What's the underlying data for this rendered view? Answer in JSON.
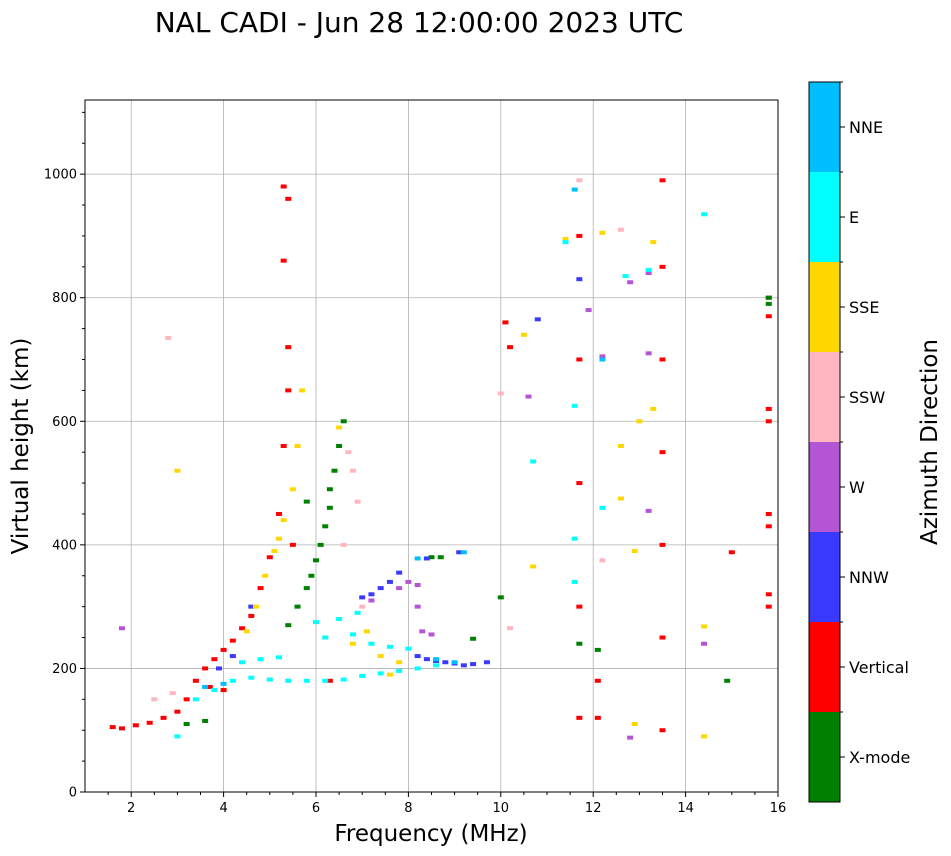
{
  "chart_data": {
    "type": "scatter",
    "title": "NAL CADI - Jun 28 12:00:00 2023 UTC",
    "xlabel": "Frequency (MHz)",
    "ylabel": "Virtual height (km)",
    "xlim": [
      1,
      16
    ],
    "ylim": [
      0,
      1120
    ],
    "xticks": [
      2,
      4,
      6,
      8,
      10,
      12,
      14,
      16
    ],
    "yticks": [
      0,
      200,
      400,
      600,
      800,
      1000
    ],
    "grid": true,
    "colorbar": {
      "label": "Azimuth Direction",
      "categories": [
        {
          "name": "X-mode",
          "color": "#008000"
        },
        {
          "name": "Vertical",
          "color": "#ff0000"
        },
        {
          "name": "NNW",
          "color": "#3a3aff"
        },
        {
          "name": "W",
          "color": "#b455d6"
        },
        {
          "name": "SSW",
          "color": "#ffb6c1"
        },
        {
          "name": "SSE",
          "color": "#ffd700"
        },
        {
          "name": "E",
          "color": "#00ffff"
        },
        {
          "name": "NNE",
          "color": "#00bfff"
        }
      ]
    },
    "series": [
      {
        "name": "Vertical",
        "color": "#ff0000",
        "points": [
          [
            1.6,
            105
          ],
          [
            1.8,
            103
          ],
          [
            2.1,
            108
          ],
          [
            2.4,
            112
          ],
          [
            2.7,
            120
          ],
          [
            3.0,
            130
          ],
          [
            3.2,
            150
          ],
          [
            3.4,
            180
          ],
          [
            3.6,
            200
          ],
          [
            3.8,
            215
          ],
          [
            4.0,
            230
          ],
          [
            4.2,
            245
          ],
          [
            4.4,
            265
          ],
          [
            4.6,
            285
          ],
          [
            4.8,
            330
          ],
          [
            5.0,
            380
          ],
          [
            5.2,
            450
          ],
          [
            5.3,
            560
          ],
          [
            5.4,
            650
          ],
          [
            5.4,
            720
          ],
          [
            5.3,
            860
          ],
          [
            5.4,
            960
          ],
          [
            5.3,
            980
          ],
          [
            3.7,
            170
          ],
          [
            4.0,
            165
          ],
          [
            11.7,
            120
          ],
          [
            11.7,
            300
          ],
          [
            11.7,
            500
          ],
          [
            11.7,
            700
          ],
          [
            11.7,
            900
          ],
          [
            13.5,
            100
          ],
          [
            13.5,
            250
          ],
          [
            13.5,
            400
          ],
          [
            13.5,
            550
          ],
          [
            13.5,
            700
          ],
          [
            13.5,
            850
          ],
          [
            13.5,
            990
          ],
          [
            15.8,
            300
          ],
          [
            15.8,
            320
          ],
          [
            15.8,
            430
          ],
          [
            15.8,
            450
          ],
          [
            15.8,
            600
          ],
          [
            15.8,
            620
          ],
          [
            15.8,
            770
          ],
          [
            15.8,
            800
          ],
          [
            15.0,
            388
          ],
          [
            12.1,
            120
          ],
          [
            12.1,
            180
          ],
          [
            10.1,
            760
          ],
          [
            10.2,
            720
          ],
          [
            6.3,
            180
          ],
          [
            5.5,
            400
          ]
        ]
      },
      {
        "name": "X-mode",
        "color": "#008000",
        "points": [
          [
            5.8,
            330
          ],
          [
            5.9,
            350
          ],
          [
            6.0,
            375
          ],
          [
            6.1,
            400
          ],
          [
            6.2,
            430
          ],
          [
            6.3,
            460
          ],
          [
            6.3,
            490
          ],
          [
            6.4,
            520
          ],
          [
            6.5,
            560
          ],
          [
            6.6,
            600
          ],
          [
            5.6,
            300
          ],
          [
            5.4,
            270
          ],
          [
            8.5,
            380
          ],
          [
            8.7,
            380
          ],
          [
            9.4,
            248
          ],
          [
            10.0,
            315
          ],
          [
            11.7,
            240
          ],
          [
            12.1,
            230
          ],
          [
            14.9,
            180
          ],
          [
            15.8,
            790
          ],
          [
            15.8,
            800
          ],
          [
            3.6,
            115
          ],
          [
            3.2,
            110
          ],
          [
            5.8,
            470
          ]
        ]
      },
      {
        "name": "NNW",
        "color": "#3a3aff",
        "points": [
          [
            7.0,
            315
          ],
          [
            7.2,
            320
          ],
          [
            7.4,
            330
          ],
          [
            7.6,
            340
          ],
          [
            7.8,
            355
          ],
          [
            8.2,
            220
          ],
          [
            8.4,
            215
          ],
          [
            8.6,
            212
          ],
          [
            8.8,
            210
          ],
          [
            9.0,
            208
          ],
          [
            9.2,
            205
          ],
          [
            9.4,
            207
          ],
          [
            9.7,
            210
          ],
          [
            8.4,
            378
          ],
          [
            9.1,
            388
          ],
          [
            10.8,
            765
          ],
          [
            11.7,
            830
          ],
          [
            3.9,
            200
          ],
          [
            4.2,
            220
          ],
          [
            4.6,
            300
          ]
        ]
      },
      {
        "name": "W",
        "color": "#b455d6",
        "points": [
          [
            7.8,
            330
          ],
          [
            8.0,
            340
          ],
          [
            8.2,
            335
          ],
          [
            8.2,
            300
          ],
          [
            8.3,
            260
          ],
          [
            8.5,
            255
          ],
          [
            12.2,
            705
          ],
          [
            12.8,
            825
          ],
          [
            13.2,
            710
          ],
          [
            13.2,
            840
          ],
          [
            13.2,
            455
          ],
          [
            10.6,
            640
          ],
          [
            12.8,
            88
          ],
          [
            14.4,
            240
          ],
          [
            1.8,
            265
          ],
          [
            7.2,
            310
          ],
          [
            11.9,
            780
          ]
        ]
      },
      {
        "name": "SSW",
        "color": "#ffb6c1",
        "points": [
          [
            6.7,
            550
          ],
          [
            6.8,
            520
          ],
          [
            6.6,
            400
          ],
          [
            7.0,
            300
          ],
          [
            12.6,
            910
          ],
          [
            12.2,
            700
          ],
          [
            10.2,
            265
          ],
          [
            12.2,
            375
          ],
          [
            2.8,
            735
          ],
          [
            6.9,
            470
          ],
          [
            2.5,
            150
          ],
          [
            2.9,
            160
          ],
          [
            11.7,
            990
          ],
          [
            10.0,
            645
          ]
        ]
      },
      {
        "name": "SSE",
        "color": "#ffd700",
        "points": [
          [
            4.5,
            260
          ],
          [
            4.7,
            300
          ],
          [
            4.9,
            350
          ],
          [
            5.1,
            390
          ],
          [
            5.2,
            410
          ],
          [
            5.3,
            440
          ],
          [
            5.5,
            490
          ],
          [
            5.6,
            560
          ],
          [
            5.7,
            650
          ],
          [
            6.5,
            590
          ],
          [
            6.8,
            240
          ],
          [
            7.1,
            260
          ],
          [
            7.4,
            220
          ],
          [
            7.8,
            210
          ],
          [
            13.0,
            600
          ],
          [
            12.6,
            560
          ],
          [
            12.6,
            475
          ],
          [
            12.9,
            390
          ],
          [
            14.4,
            268
          ],
          [
            14.4,
            90
          ],
          [
            12.9,
            110
          ],
          [
            10.5,
            740
          ],
          [
            10.7,
            365
          ],
          [
            13.3,
            620
          ],
          [
            13.3,
            890
          ],
          [
            11.4,
            895
          ],
          [
            12.2,
            905
          ],
          [
            3.0,
            520
          ],
          [
            7.6,
            190
          ]
        ]
      },
      {
        "name": "E",
        "color": "#00ffff",
        "points": [
          [
            4.2,
            180
          ],
          [
            4.6,
            185
          ],
          [
            5.0,
            182
          ],
          [
            5.4,
            180
          ],
          [
            5.8,
            180
          ],
          [
            6.2,
            180
          ],
          [
            6.6,
            182
          ],
          [
            7.0,
            188
          ],
          [
            7.4,
            192
          ],
          [
            7.8,
            196
          ],
          [
            8.2,
            200
          ],
          [
            8.6,
            205
          ],
          [
            4.4,
            210
          ],
          [
            4.8,
            215
          ],
          [
            5.2,
            218
          ],
          [
            6.2,
            250
          ],
          [
            6.8,
            255
          ],
          [
            7.2,
            240
          ],
          [
            7.6,
            235
          ],
          [
            8.0,
            232
          ],
          [
            6.0,
            275
          ],
          [
            6.5,
            280
          ],
          [
            6.9,
            290
          ],
          [
            3.4,
            150
          ],
          [
            3.8,
            165
          ],
          [
            12.2,
            460
          ],
          [
            11.6,
            410
          ],
          [
            11.6,
            340
          ],
          [
            11.6,
            625
          ],
          [
            11.4,
            890
          ],
          [
            13.2,
            845
          ],
          [
            14.4,
            935
          ],
          [
            12.7,
            835
          ],
          [
            10.7,
            535
          ],
          [
            3.0,
            90
          ]
        ]
      },
      {
        "name": "NNE",
        "color": "#00bfff",
        "points": [
          [
            3.6,
            170
          ],
          [
            4.0,
            175
          ],
          [
            8.6,
            215
          ],
          [
            9.0,
            210
          ],
          [
            9.2,
            388
          ],
          [
            8.2,
            378
          ],
          [
            11.6,
            975
          ],
          [
            12.2,
            700
          ]
        ]
      }
    ]
  }
}
